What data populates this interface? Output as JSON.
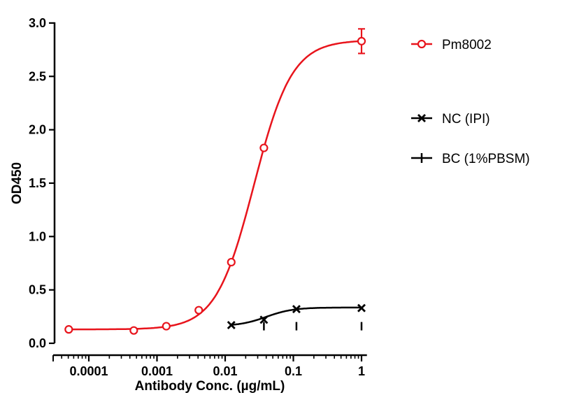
{
  "chart_data": {
    "type": "scatter",
    "xlabel": "Antibody Conc. (µg/mL)",
    "ylabel": "OD450",
    "xscale": "log",
    "xlim": [
      3e-05,
      1.2
    ],
    "ylim": [
      0,
      3.0
    ],
    "xticks": [
      0.0001,
      0.001,
      0.01,
      0.1,
      1
    ],
    "xtick_labels": [
      "0.0001",
      "0.001",
      "0.01",
      "0.1",
      "1"
    ],
    "yticks": [
      0,
      0.5,
      1.0,
      1.5,
      2.0,
      2.5,
      3.0
    ],
    "ytick_labels": [
      "0.0",
      "0.5",
      "1.0",
      "1.5",
      "2.0",
      "2.5",
      "3.0"
    ],
    "grid": false,
    "legend_position": "right",
    "series": [
      {
        "name": "Pm8002",
        "color": "#e8141c",
        "marker": "circle-open",
        "x": [
          5.08e-05,
          0.000457,
          0.00137,
          0.0041,
          0.0123,
          0.037,
          1
        ],
        "y": [
          0.13,
          0.12,
          0.16,
          0.31,
          0.76,
          1.83,
          2.83
        ],
        "error": [
          0,
          0,
          0,
          0,
          0,
          0,
          0.115
        ],
        "fit": {
          "bottom": 0.13,
          "top": 2.84,
          "ec50": 0.0265,
          "hill": 1.56
        }
      },
      {
        "name": "NC (IPI)",
        "color": "#000000",
        "marker": "x",
        "x": [
          0.0123,
          0.037,
          0.111,
          1
        ],
        "y": [
          0.17,
          0.22,
          0.32,
          0.33
        ],
        "fit": {
          "bottom": 0.16,
          "top": 0.335,
          "ec50": 0.04,
          "hill": 2.2
        }
      },
      {
        "name": "BC (1%PBSM)",
        "color": "#000000",
        "marker": "plus",
        "x": [
          0.037,
          0.111,
          1
        ],
        "y": [
          0.16,
          0.16,
          0.16
        ]
      }
    ]
  }
}
